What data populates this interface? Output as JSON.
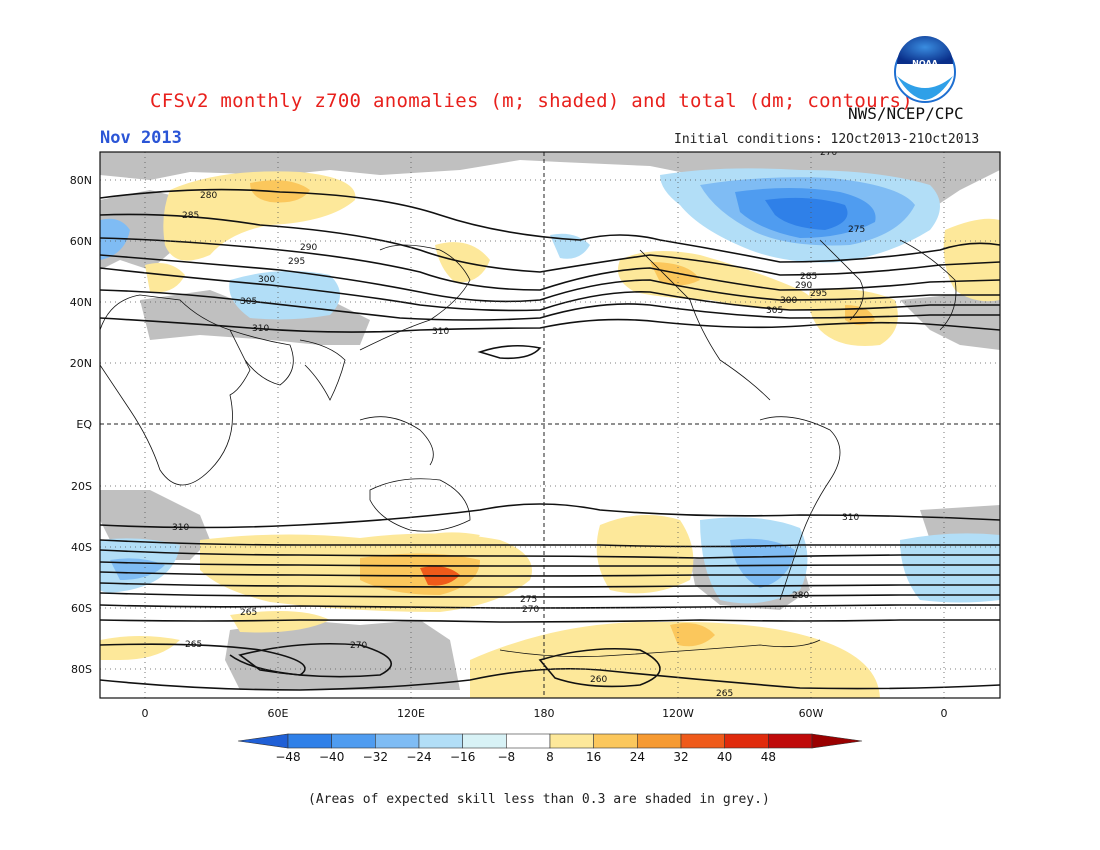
{
  "header": {
    "title": "CFSv2 monthly z700 anomalies (m; shaded) and total (dm; contours)",
    "agency": "NWS/NCEP/CPC",
    "month": "Nov 2013",
    "initial_conditions": "Initial conditions: 12Oct2013-21Oct2013"
  },
  "logo": {
    "text": "NOAA"
  },
  "map": {
    "lat_ticks": [
      "80N",
      "60N",
      "40N",
      "20N",
      "EQ",
      "20S",
      "40S",
      "60S",
      "80S"
    ],
    "lon_ticks": [
      "0",
      "60E",
      "120E",
      "180",
      "120W",
      "60W",
      "0"
    ],
    "contour_labels": [
      "270",
      "275",
      "280",
      "285",
      "290",
      "295",
      "300",
      "305",
      "310",
      "310",
      "310",
      "265",
      "265",
      "270",
      "260",
      "265",
      "270",
      "275",
      "280",
      "285",
      "290",
      "295",
      "300",
      "305",
      "310"
    ],
    "colors": {
      "grey_skill": "#c0c0c0"
    }
  },
  "colorbar": {
    "ticks": [
      "-48",
      "-40",
      "-32",
      "-24",
      "-16",
      "-8",
      "8",
      "16",
      "24",
      "32",
      "40",
      "48"
    ],
    "colors": [
      "#1f5fd6",
      "#2f80e8",
      "#4f9cf0",
      "#7fbcf4",
      "#b2def7",
      "#d8f2f6",
      "#ffffff",
      "#fde89a",
      "#fbc75c",
      "#f69a32",
      "#ef5a1a",
      "#e02a0c",
      "#c00a0a",
      "#9a0000"
    ]
  },
  "footnote": "(Areas of expected skill less than 0.3 are shaded in grey.)"
}
